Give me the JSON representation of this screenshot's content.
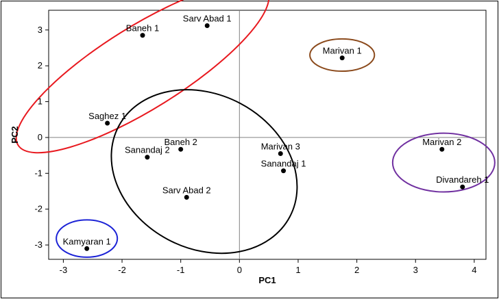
{
  "chart_data": {
    "type": "scatter",
    "title": "",
    "xlabel": "PC1",
    "ylabel": "PC2",
    "xlim": [
      -3.25,
      4.2
    ],
    "ylim": [
      -3.4,
      3.55
    ],
    "xticks": [
      -3,
      -2,
      -1,
      0,
      1,
      2,
      3,
      4
    ],
    "yticks": [
      -3,
      -2,
      -1,
      0,
      1,
      2,
      3
    ],
    "reference_lines": {
      "x": 0,
      "y": 0
    },
    "grid": false,
    "points": [
      {
        "label": "Baneh 1",
        "x": -1.65,
        "y": 2.85
      },
      {
        "label": "Sarv Abad 1",
        "x": -0.55,
        "y": 3.12
      },
      {
        "label": "Saghez 1",
        "x": -2.25,
        "y": 0.4
      },
      {
        "label": "Baneh 2",
        "x": -1.0,
        "y": -0.33
      },
      {
        "label": "Sanandaj 2",
        "x": -1.57,
        "y": -0.55
      },
      {
        "label": "Sarv Abad 2",
        "x": -0.9,
        "y": -1.67
      },
      {
        "label": "Marivan 1",
        "x": 1.75,
        "y": 2.22
      },
      {
        "label": "Marivan 3",
        "x": 0.7,
        "y": -0.45
      },
      {
        "label": "Sanandaj 1",
        "x": 0.75,
        "y": -0.93
      },
      {
        "label": "Marivan 2",
        "x": 3.45,
        "y": -0.33
      },
      {
        "label": "Divandareh 1",
        "x": 3.8,
        "y": -1.38
      },
      {
        "label": "Kamyaran 1",
        "x": -2.6,
        "y": -3.1
      }
    ],
    "clusters": [
      {
        "color": "#e8191f",
        "cx": -1.65,
        "cy": 1.95,
        "rx": 2.5,
        "ry": 1.15,
        "angle_deg": -32
      },
      {
        "color": "#000000",
        "cx": -0.6,
        "cy": -0.95,
        "rx": 1.65,
        "ry": 2.15,
        "angle_deg": 28
      },
      {
        "color": "#8b4a1c",
        "cx": 1.75,
        "cy": 2.3,
        "rx": 0.55,
        "ry": 0.45,
        "angle_deg": 0
      },
      {
        "color": "#7030a0",
        "cx": 3.48,
        "cy": -0.7,
        "rx": 0.87,
        "ry": 0.82,
        "angle_deg": 0
      },
      {
        "color": "#1c23d6",
        "cx": -2.6,
        "cy": -2.82,
        "rx": 0.52,
        "ry": 0.52,
        "angle_deg": 0
      }
    ]
  }
}
